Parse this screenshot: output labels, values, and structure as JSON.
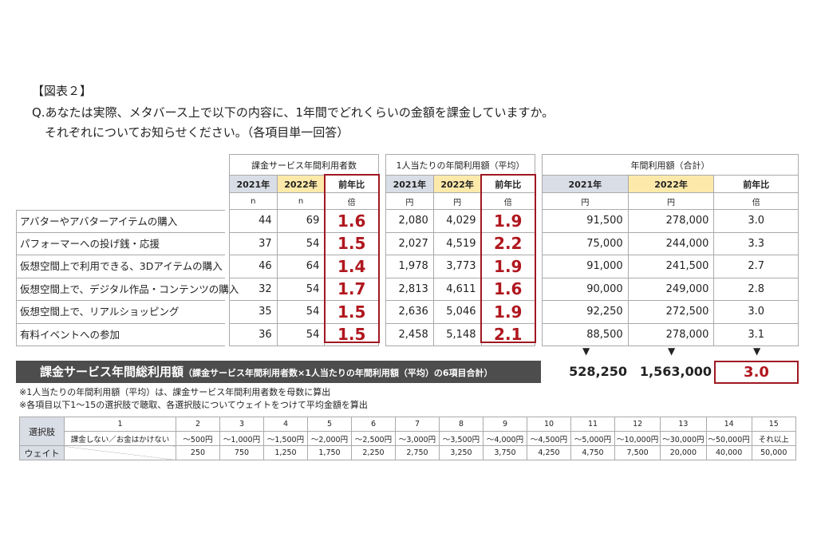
{
  "header": {
    "figure_label": "【図表２】",
    "question_line1": "Q.あなたは実際、メタバース上で以下の内容に、1年間でどれくらいの金額を課金していますか。",
    "question_line2": "それぞれについてお知らせください。（各項目単一回答）"
  },
  "groups": {
    "users": "課金サービス年間利用者数",
    "per_person": "1人当たりの年間利用額（平均）",
    "total": "年間利用額（合計）"
  },
  "cols": {
    "y2021": "2021年",
    "y2022": "2022年",
    "ratio": "前年比",
    "unit_n": "n",
    "unit_yen": "円",
    "unit_times": "倍"
  },
  "rows": [
    {
      "label": "アバターやアバターアイテムの購入",
      "n21": "44",
      "n22": "69",
      "nr": "1.6",
      "a21": "2,080",
      "a22": "4,029",
      "ar": "1.9",
      "t21": "91,500",
      "t22": "278,000",
      "tr": "3.0"
    },
    {
      "label": "パフォーマーへの投げ銭・応援",
      "n21": "37",
      "n22": "54",
      "nr": "1.5",
      "a21": "2,027",
      "a22": "4,519",
      "ar": "2.2",
      "t21": "75,000",
      "t22": "244,000",
      "tr": "3.3"
    },
    {
      "label": "仮想空間上で利用できる、3Dアイテムの購入",
      "n21": "46",
      "n22": "64",
      "nr": "1.4",
      "a21": "1,978",
      "a22": "3,773",
      "ar": "1.9",
      "t21": "91,000",
      "t22": "241,500",
      "tr": "2.7"
    },
    {
      "label": "仮想空間上で、デジタル作品・コンテンツの購入",
      "n21": "32",
      "n22": "54",
      "nr": "1.7",
      "a21": "2,813",
      "a22": "4,611",
      "ar": "1.6",
      "t21": "90,000",
      "t22": "249,000",
      "tr": "2.8"
    },
    {
      "label": "仮想空間上で、リアルショッピング",
      "n21": "35",
      "n22": "54",
      "nr": "1.5",
      "a21": "2,636",
      "a22": "5,046",
      "ar": "1.9",
      "t21": "92,250",
      "t22": "272,500",
      "tr": "3.0"
    },
    {
      "label": "有料イベントへの参加",
      "n21": "36",
      "n22": "54",
      "nr": "1.5",
      "a21": "2,458",
      "a22": "5,148",
      "ar": "2.1",
      "t21": "88,500",
      "t22": "278,000",
      "tr": "3.1"
    }
  ],
  "arrow": "▼",
  "total_row": {
    "label_main": "課金サービス年間総利用額",
    "label_sub": "（課金サービス年間利用者数×1人当たりの年間利用額（平均）の6項目合計）",
    "v2021": "528,250",
    "v2022": "1,563,000",
    "ratio": "3.0"
  },
  "notes": [
    "※1人当たりの年間利用額（平均）は、課金サービス年間利用者数を母数に算出",
    "※各項目以下1～15の選択肢で聴取、各選択肢についてウェイトをつけて平均金額を算出"
  ],
  "options": {
    "row1_label": "選択肢",
    "row2_label": "ウェイト",
    "numbers": [
      "1",
      "2",
      "3",
      "4",
      "5",
      "6",
      "7",
      "8",
      "9",
      "10",
      "11",
      "12",
      "13",
      "14",
      "15"
    ],
    "texts": [
      "課金しない／お金はかけない",
      "～500円",
      "～1,000円",
      "～1,500円",
      "～2,000円",
      "～2,500円",
      "～3,000円",
      "～3,500円",
      "～4,000円",
      "～4,500円",
      "～5,000円",
      "～10,000円",
      "～30,000円",
      "～50,000円",
      "それ以上"
    ],
    "weights": [
      "",
      "250",
      "750",
      "1,250",
      "1,750",
      "2,250",
      "2,750",
      "3,250",
      "3,750",
      "4,250",
      "4,750",
      "7,500",
      "20,000",
      "40,000",
      "50,000"
    ]
  }
}
